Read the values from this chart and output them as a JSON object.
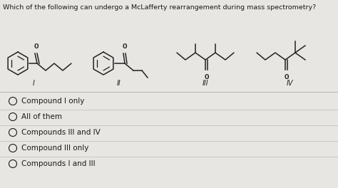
{
  "title": "Which of the following can undergo a McLafferty rearrangement during mass spectrometry?",
  "background_color": "#e8e6e3",
  "title_fontsize": 6.8,
  "options": [
    "Compound I only",
    "All of them",
    "Compounds III and IV",
    "Compound III only",
    "Compounds I and III"
  ],
  "text_color": "#1a1a1a",
  "line_color": "#222222",
  "option_fontsize": 7.5,
  "struct_lw": 1.1
}
